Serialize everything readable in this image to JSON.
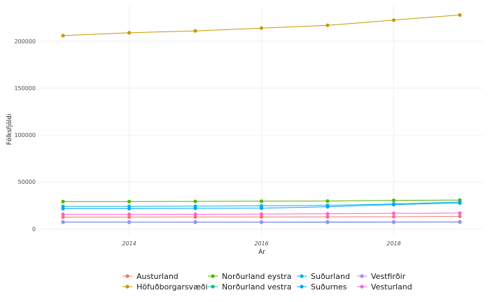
{
  "chart_data": {
    "type": "line",
    "xlabel": "Ár",
    "ylabel": "Fólksfjöldi",
    "x": [
      2013,
      2014,
      2015,
      2016,
      2017,
      2018,
      2019
    ],
    "xlim": [
      2012.65,
      2019.35
    ],
    "ylim": [
      -8000,
      238000
    ],
    "x_ticks": [
      2014,
      2016,
      2018
    ],
    "x_tick_labels": [
      "2014",
      "2016",
      "2018"
    ],
    "y_ticks": [
      0,
      50000,
      100000,
      150000,
      200000
    ],
    "y_tick_labels": [
      "0",
      "50000",
      "100000",
      "150000",
      "200000"
    ],
    "grid": true,
    "legend_position": "bottom",
    "series": [
      {
        "name": "Austurland",
        "color": "#F8766D",
        "values": [
          12400,
          12500,
          12600,
          12600,
          12700,
          12800,
          13300
        ]
      },
      {
        "name": "Höfuðborgarsvæði",
        "color": "#C49A00",
        "values": [
          206000,
          209000,
          211000,
          214000,
          217000,
          222500,
          228000
        ]
      },
      {
        "name": "Norðurland eystra",
        "color": "#53B400",
        "values": [
          29000,
          29000,
          29200,
          29400,
          29600,
          30300,
          30600
        ]
      },
      {
        "name": "Norðurland vestra",
        "color": "#00C094",
        "values": [
          7300,
          7200,
          7200,
          7200,
          7300,
          7300,
          7400
        ]
      },
      {
        "name": "Suðurland",
        "color": "#00B6EB",
        "values": [
          24000,
          24000,
          24100,
          24400,
          25000,
          26500,
          28500
        ]
      },
      {
        "name": "Suðurnes",
        "color": "#06A4FF",
        "values": [
          21500,
          21500,
          21800,
          22000,
          23500,
          25800,
          27500
        ]
      },
      {
        "name": "Vestfirðir",
        "color": "#A58AFF",
        "values": [
          7000,
          7000,
          7000,
          6900,
          6900,
          7000,
          7100
        ]
      },
      {
        "name": "Vesturland",
        "color": "#FB61D7",
        "values": [
          15400,
          15400,
          15500,
          15700,
          16000,
          16500,
          16700
        ]
      }
    ]
  }
}
